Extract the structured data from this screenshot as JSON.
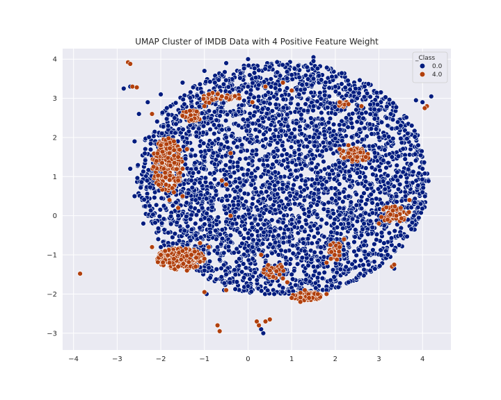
{
  "chart_data": {
    "type": "scatter",
    "title": "UMAP Cluster of IMDB Data with 4 Positive Feature Weight",
    "xlabel": "",
    "ylabel": "",
    "xlim": [
      -4.25,
      4.65
    ],
    "ylim": [
      -3.43,
      4.27
    ],
    "x_ticks": [
      -4,
      -3,
      -2,
      -1,
      0,
      1,
      2,
      3,
      4
    ],
    "y_ticks": [
      -3,
      -2,
      -1,
      0,
      1,
      2,
      3,
      4
    ],
    "grid": true,
    "legend": {
      "title": "_Class",
      "placement": "top-right",
      "entries": [
        "0.0",
        "4.0"
      ]
    },
    "colors": {
      "background": "#eaeaf2",
      "grid": "#ffffff",
      "class_0": "#001c7f",
      "class_4": "#b1400d",
      "edge": "#ffffff"
    },
    "series": [
      {
        "name": "0.0",
        "color": "#001c7f",
        "description_points": "main body",
        "points": [
          [
            -2.5,
            2.6
          ],
          [
            -2.3,
            2.9
          ],
          [
            -2.0,
            3.1
          ],
          [
            -1.5,
            3.4
          ],
          [
            -1.0,
            3.7
          ],
          [
            -0.5,
            3.9
          ],
          [
            0.0,
            4.0
          ],
          [
            0.5,
            3.8
          ],
          [
            1.0,
            3.6
          ],
          [
            1.5,
            3.5
          ],
          [
            2.0,
            3.3
          ],
          [
            2.5,
            3.0
          ],
          [
            3.0,
            2.7
          ],
          [
            3.5,
            2.3
          ],
          [
            3.9,
            1.8
          ],
          [
            4.0,
            1.2
          ],
          [
            4.0,
            0.6
          ],
          [
            3.8,
            0.0
          ],
          [
            3.5,
            -0.5
          ],
          [
            3.2,
            -1.0
          ],
          [
            2.8,
            -1.4
          ],
          [
            2.3,
            -1.7
          ],
          [
            1.8,
            -1.9
          ],
          [
            1.2,
            -2.0
          ],
          [
            0.6,
            -2.0
          ],
          [
            0.0,
            -1.8
          ],
          [
            -0.5,
            -1.5
          ],
          [
            -1.0,
            -1.4
          ],
          [
            -1.5,
            -1.2
          ],
          [
            -2.0,
            -0.8
          ],
          [
            -2.4,
            -0.2
          ],
          [
            -2.6,
            0.5
          ],
          [
            -2.7,
            1.2
          ],
          [
            -2.6,
            1.9
          ],
          [
            -1.5,
            2.0
          ],
          [
            -1.0,
            2.5
          ],
          [
            -0.5,
            3.0
          ],
          [
            0.0,
            3.3
          ],
          [
            0.5,
            3.0
          ],
          [
            1.0,
            3.0
          ],
          [
            1.5,
            2.8
          ],
          [
            2.0,
            2.6
          ],
          [
            2.5,
            2.4
          ],
          [
            3.0,
            2.0
          ],
          [
            3.3,
            1.5
          ],
          [
            3.5,
            1.0
          ],
          [
            3.4,
            0.5
          ],
          [
            3.0,
            0.0
          ],
          [
            2.6,
            -0.5
          ],
          [
            2.2,
            -1.0
          ],
          [
            1.6,
            -1.3
          ],
          [
            1.0,
            -1.5
          ],
          [
            0.4,
            -1.4
          ],
          [
            -0.2,
            -1.1
          ],
          [
            -0.7,
            -0.8
          ],
          [
            -1.2,
            -0.5
          ],
          [
            -1.6,
            0.0
          ],
          [
            -1.8,
            0.6
          ],
          [
            -1.9,
            1.2
          ],
          [
            -1.8,
            1.7
          ],
          [
            -1.0,
            1.5
          ],
          [
            -0.5,
            2.0
          ],
          [
            0.0,
            2.3
          ],
          [
            0.5,
            2.2
          ],
          [
            1.0,
            2.1
          ],
          [
            1.5,
            2.0
          ],
          [
            2.0,
            1.8
          ],
          [
            2.5,
            1.3
          ],
          [
            2.8,
            0.8
          ],
          [
            2.7,
            0.3
          ],
          [
            2.3,
            -0.2
          ],
          [
            1.9,
            -0.6
          ],
          [
            1.3,
            -0.9
          ],
          [
            0.7,
            -1.0
          ],
          [
            0.1,
            -0.8
          ],
          [
            -0.4,
            -0.5
          ],
          [
            -0.9,
            -0.1
          ],
          [
            -1.2,
            0.4
          ],
          [
            -1.3,
            0.9
          ],
          [
            -0.4,
            1.0
          ],
          [
            0.1,
            1.4
          ],
          [
            0.6,
            1.5
          ],
          [
            1.1,
            1.3
          ],
          [
            1.6,
            1.1
          ],
          [
            2.0,
            0.7
          ],
          [
            2.1,
            0.2
          ],
          [
            1.8,
            -0.2
          ],
          [
            1.3,
            -0.4
          ],
          [
            0.7,
            -0.5
          ],
          [
            0.1,
            -0.3
          ],
          [
            -0.3,
            0.1
          ],
          [
            -0.5,
            0.5
          ],
          [
            0.3,
            0.6
          ],
          [
            0.8,
            0.8
          ],
          [
            1.2,
            0.5
          ],
          [
            1.4,
            0.1
          ],
          [
            1.0,
            -0.1
          ],
          [
            0.5,
            0.1
          ],
          [
            0.1,
            0.3
          ],
          [
            1.5,
            4.05
          ],
          [
            1.5,
            3.95
          ],
          [
            4.2,
            3.05
          ],
          [
            4.0,
            2.9
          ],
          [
            3.85,
            2.95
          ],
          [
            -2.7,
            3.3
          ],
          [
            -2.85,
            3.25
          ],
          [
            0.35,
            -3.0
          ],
          [
            0.3,
            -2.9
          ],
          [
            -0.55,
            -1.9
          ],
          [
            -0.95,
            -2.0
          ],
          [
            3.35,
            -1.35
          ]
        ]
      },
      {
        "name": "4.0",
        "color": "#b1400d",
        "description_points": "orange clusters",
        "points": [
          [
            -3.85,
            -1.48
          ],
          [
            -2.75,
            3.92
          ],
          [
            -2.7,
            3.88
          ],
          [
            -2.65,
            3.3
          ],
          [
            -2.55,
            3.28
          ],
          [
            -2.2,
            2.6
          ],
          [
            -1.5,
            2.55
          ],
          [
            -1.3,
            2.45
          ],
          [
            -1.0,
            2.8
          ],
          [
            -0.9,
            3.1
          ],
          [
            -0.6,
            3.05
          ],
          [
            -0.2,
            3.0
          ],
          [
            0.1,
            2.9
          ],
          [
            0.4,
            3.3
          ],
          [
            0.8,
            3.4
          ],
          [
            1.0,
            3.2
          ],
          [
            2.1,
            2.9
          ],
          [
            2.3,
            2.85
          ],
          [
            2.6,
            2.8
          ],
          [
            -2.0,
            1.8
          ],
          [
            -1.8,
            1.6
          ],
          [
            -1.6,
            1.5
          ],
          [
            -1.5,
            1.2
          ],
          [
            -1.6,
            0.9
          ],
          [
            -1.7,
            0.6
          ],
          [
            -1.8,
            0.4
          ],
          [
            -1.6,
            0.2
          ],
          [
            -1.9,
            1.1
          ],
          [
            -2.1,
            1.4
          ],
          [
            -1.4,
            1.7
          ],
          [
            -1.7,
            1.9
          ],
          [
            -1.5,
            0.5
          ],
          [
            -2.2,
            -0.8
          ],
          [
            -2.0,
            -1.0
          ],
          [
            -1.8,
            -1.2
          ],
          [
            -1.6,
            -1.3
          ],
          [
            -1.4,
            -1.4
          ],
          [
            -1.2,
            -1.3
          ],
          [
            -1.0,
            -1.1
          ],
          [
            -0.9,
            -0.8
          ],
          [
            -1.1,
            -0.7
          ],
          [
            -1.5,
            -0.9
          ],
          [
            -1.9,
            -0.9
          ],
          [
            -1.3,
            -1.0
          ],
          [
            -1.7,
            -1.1
          ],
          [
            0.3,
            -1.0
          ],
          [
            0.5,
            -1.4
          ],
          [
            0.8,
            -1.6
          ],
          [
            1.0,
            -2.1
          ],
          [
            1.2,
            -2.2
          ],
          [
            1.4,
            -2.1
          ],
          [
            1.6,
            -2.0
          ],
          [
            1.8,
            -2.0
          ],
          [
            1.3,
            -1.9
          ],
          [
            0.9,
            -1.7
          ],
          [
            1.9,
            -1.1
          ],
          [
            2.1,
            -0.8
          ],
          [
            2.2,
            -0.6
          ],
          [
            1.8,
            -1.2
          ],
          [
            2.3,
            1.6
          ],
          [
            2.5,
            1.5
          ],
          [
            2.7,
            1.5
          ],
          [
            2.3,
            1.8
          ],
          [
            2.1,
            1.7
          ],
          [
            3.0,
            -0.2
          ],
          [
            3.2,
            -0.1
          ],
          [
            3.5,
            0.2
          ],
          [
            3.7,
            0.4
          ],
          [
            3.4,
            0.0
          ],
          [
            -0.4,
            0.0
          ],
          [
            -0.6,
            0.9
          ],
          [
            -0.5,
            0.8
          ],
          [
            -0.4,
            1.6
          ],
          [
            -0.7,
            -2.8
          ],
          [
            -0.65,
            -2.95
          ],
          [
            0.2,
            -2.7
          ],
          [
            0.25,
            -2.8
          ],
          [
            0.4,
            -2.7
          ],
          [
            0.5,
            -2.65
          ],
          [
            4.1,
            2.8
          ],
          [
            4.05,
            2.75
          ],
          [
            3.3,
            -1.3
          ],
          [
            3.35,
            -1.25
          ],
          [
            -0.5,
            -1.9
          ],
          [
            -1.0,
            -1.95
          ]
        ]
      }
    ]
  }
}
